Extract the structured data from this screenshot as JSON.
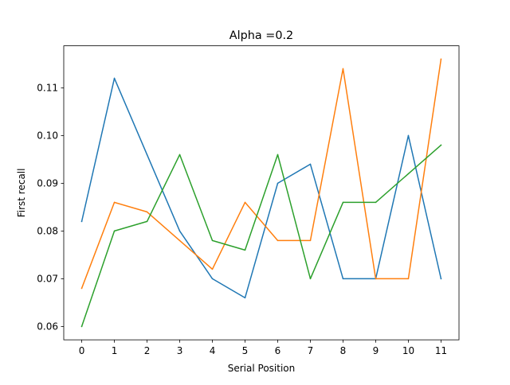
{
  "chart_data": {
    "type": "line",
    "title": "Alpha =0.2",
    "xlabel": "Serial Position",
    "ylabel": "First recall",
    "x": [
      0,
      1,
      2,
      3,
      4,
      5,
      6,
      7,
      8,
      9,
      10,
      11
    ],
    "x_ticks": [
      "0",
      "1",
      "2",
      "3",
      "4",
      "5",
      "6",
      "7",
      "8",
      "9",
      "10",
      "11"
    ],
    "y_ticks": [
      "0.06",
      "0.07",
      "0.08",
      "0.09",
      "0.10",
      "0.11"
    ],
    "y_tick_values": [
      0.06,
      0.07,
      0.08,
      0.09,
      0.1,
      0.11
    ],
    "xlim": [
      -0.55,
      11.55
    ],
    "ylim": [
      0.0572,
      0.1188
    ],
    "grid": false,
    "legend": false,
    "series": [
      {
        "color": "#1f77b4",
        "values": [
          0.082,
          0.112,
          0.096,
          0.08,
          0.07,
          0.066,
          0.09,
          0.094,
          0.07,
          0.07,
          0.1,
          0.07
        ]
      },
      {
        "color": "#ff7f0e",
        "values": [
          0.068,
          0.086,
          0.084,
          0.078,
          0.072,
          0.086,
          0.078,
          0.078,
          0.114,
          0.07,
          0.07,
          0.116
        ]
      },
      {
        "color": "#2ca02c",
        "values": [
          0.06,
          0.08,
          0.082,
          0.096,
          0.078,
          0.076,
          0.096,
          0.07,
          0.086,
          0.086,
          0.092,
          0.098
        ]
      }
    ]
  }
}
